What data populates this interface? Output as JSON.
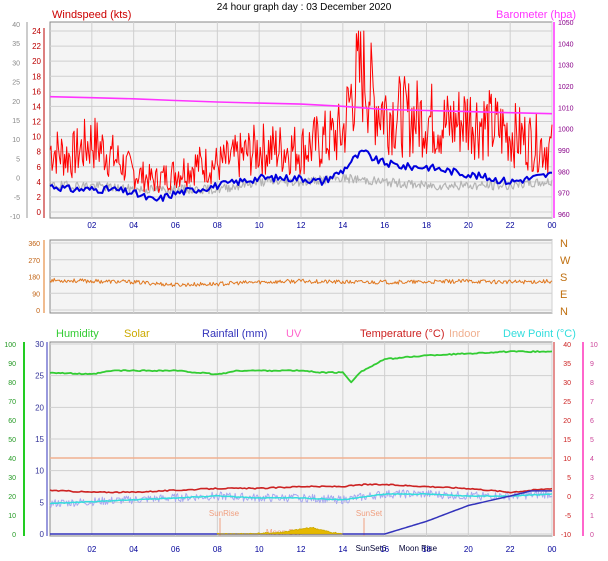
{
  "title": "24 hour graph day : 03 December 2020",
  "colors": {
    "wind": "#ff0000",
    "avgwind": "#0000dd",
    "gust_base": "#b4b4b4",
    "baro": "#ff33ff",
    "dir": "#e07820",
    "humidity": "#33cc33",
    "solar": "#ccaa00",
    "rain": "#3333bb",
    "uv": "#ff66cc",
    "temp": "#cc2222",
    "indoor": "#f0b090",
    "dew": "#33dddd",
    "sunmoon": "#f0a080",
    "grid": "#cfcfcf",
    "axis_blue": "#000099"
  },
  "time_ticks": [
    "02",
    "04",
    "06",
    "08",
    "10",
    "12",
    "14",
    "16",
    "18",
    "20",
    "22",
    "00"
  ],
  "chart_data": [
    {
      "type": "line",
      "panel": "wind-baro",
      "ylabel": "Windspeed (kts)",
      "ylabel_right": "Barometer (hpa)",
      "left_axis_kts": {
        "range": [
          0,
          24
        ],
        "ticks": [
          "24",
          "22",
          "20",
          "18",
          "16",
          "14",
          "12",
          "10",
          "8",
          "6",
          "4",
          "2",
          "0"
        ]
      },
      "left_axis_outer": {
        "range": [
          -10,
          40
        ],
        "ticks": [
          "40",
          "35",
          "30",
          "25",
          "20",
          "15",
          "10",
          "5",
          "0",
          "-5",
          "-10"
        ]
      },
      "right_axis_hpa": {
        "range": [
          960,
          1050
        ],
        "ticks": [
          "1050",
          "1040",
          "1030",
          "1020",
          "1010",
          "1000",
          "990",
          "980",
          "970",
          "960"
        ]
      },
      "series": [
        {
          "name": "Windspeed (kts)",
          "role": "gust",
          "x_hours": [
            0,
            1,
            2,
            3,
            4,
            5,
            6,
            7,
            8,
            9,
            10,
            11,
            12,
            13,
            14,
            14.5,
            15,
            15.5,
            16,
            17,
            18,
            19,
            20,
            21,
            22,
            23,
            24
          ],
          "values": [
            8,
            7,
            9,
            7,
            5,
            4,
            5,
            6,
            6,
            7,
            8,
            8,
            8,
            9,
            10,
            16,
            18,
            14,
            13,
            12,
            12,
            11,
            12,
            11,
            10,
            9,
            8
          ]
        },
        {
          "role": "avg",
          "x_hours": [
            0,
            1,
            2,
            3,
            4,
            5,
            6,
            7,
            8,
            9,
            10,
            11,
            12,
            13,
            14,
            14.5,
            15,
            15.5,
            16,
            17,
            18,
            19,
            20,
            21,
            22,
            23,
            24
          ],
          "values": [
            3.5,
            3,
            3,
            3,
            2.5,
            1.5,
            2.5,
            3,
            3.5,
            4,
            4.5,
            4.5,
            4.5,
            4,
            5.5,
            7,
            8,
            7,
            6.5,
            6,
            6,
            5.5,
            5,
            4.5,
            4,
            4.5,
            5
          ]
        },
        {
          "role": "base",
          "x_hours": [
            0,
            2,
            4,
            6,
            8,
            10,
            12,
            14,
            16,
            18,
            20,
            22,
            24
          ],
          "values": [
            3.5,
            3.5,
            3,
            3,
            3,
            4,
            4,
            4.5,
            4,
            3.5,
            3.5,
            3.5,
            4
          ]
        },
        {
          "name": "Barometer (hpa)",
          "axis": "right",
          "x_hours": [
            0,
            2,
            4,
            6,
            8,
            10,
            12,
            14,
            16,
            18,
            20,
            22,
            24
          ],
          "values": [
            1015,
            1014.5,
            1014,
            1013.2,
            1012.5,
            1012,
            1011.5,
            1010.5,
            1009,
            1008.5,
            1008,
            1007.5,
            1007
          ]
        }
      ]
    },
    {
      "type": "line",
      "panel": "wind-direction",
      "left_axis": {
        "range": [
          0,
          360
        ],
        "ticks": [
          "360",
          "270",
          "180",
          "90",
          "0"
        ]
      },
      "right_labels": [
        "N",
        "W",
        "S",
        "E",
        "N"
      ],
      "series": [
        {
          "role": "direction",
          "x_hours": [
            0,
            2,
            4,
            6,
            8,
            10,
            12,
            14,
            16,
            18,
            20,
            22,
            24
          ],
          "values": [
            160,
            155,
            150,
            135,
            140,
            150,
            155,
            150,
            150,
            150,
            155,
            150,
            155
          ]
        }
      ]
    },
    {
      "type": "line",
      "panel": "climate",
      "legend": [
        "Humidity",
        "Solar",
        "Rainfall (mm)",
        "UV",
        "Temperature (°C)",
        "Indoor",
        "Dew Point (°C)"
      ],
      "axes": {
        "humidity": {
          "range": [
            0,
            100
          ],
          "ticks": [
            "100",
            "90",
            "80",
            "70",
            "60",
            "50",
            "40",
            "30",
            "20",
            "10",
            "0"
          ]
        },
        "rain_mm": {
          "range": [
            0,
            30
          ],
          "ticks": [
            "30",
            "25",
            "20",
            "15",
            "10",
            "5",
            "0"
          ]
        },
        "temperature": {
          "range": [
            -10,
            40
          ],
          "ticks": [
            "40",
            "35",
            "30",
            "25",
            "20",
            "15",
            "10",
            "5",
            "0",
            "-5",
            "-10"
          ]
        },
        "uv": {
          "range": [
            0,
            10
          ],
          "ticks": [
            "10",
            "9",
            "8",
            "7",
            "6",
            "5",
            "4",
            "3",
            "2",
            "1",
            "0"
          ]
        }
      },
      "annotations": [
        "SunRise",
        "SunSet",
        "Moon Set",
        "SunSet6",
        "Moon Rise"
      ],
      "series": [
        {
          "name": "Humidity",
          "axis": "humidity",
          "x_hours": [
            0,
            2,
            3,
            4,
            6,
            8,
            9,
            10,
            12,
            13,
            14,
            14.4,
            14.8,
            15.5,
            16,
            18,
            20,
            22,
            24
          ],
          "values": [
            85,
            84,
            86,
            86,
            86,
            84,
            86,
            86,
            86,
            85,
            85,
            80,
            85,
            89,
            92,
            94,
            95,
            96,
            96
          ]
        },
        {
          "name": "Temperature (°C)",
          "axis": "temperature",
          "x_hours": [
            0,
            2,
            4,
            6,
            8,
            10,
            12,
            14,
            15,
            16,
            18,
            20,
            22,
            23,
            24
          ],
          "values": [
            1.5,
            1,
            1,
            1.5,
            2,
            2,
            2.5,
            2.5,
            3,
            3,
            2.5,
            2,
            1,
            1.5,
            2
          ]
        },
        {
          "name": "Indoor",
          "axis": "temperature",
          "x_hours": [
            0,
            24
          ],
          "values": [
            10,
            10
          ]
        },
        {
          "name": "Dew Point (°C)",
          "axis": "temperature",
          "x_hours": [
            0,
            2,
            4,
            6,
            8,
            10,
            12,
            14,
            16,
            18,
            20,
            22,
            24
          ],
          "values": [
            -2,
            -1.5,
            -1,
            -0.5,
            0,
            -0.5,
            -0.5,
            -1,
            0.5,
            0.5,
            0,
            0,
            0.5
          ]
        },
        {
          "name": "Rainfall (mm)",
          "axis": "rain_mm",
          "x_hours": [
            0,
            14.5,
            15,
            16,
            18,
            20,
            22,
            23,
            24
          ],
          "values": [
            0,
            0,
            0,
            0,
            2,
            4.5,
            6,
            6.8,
            6.8
          ]
        },
        {
          "name": "Solar",
          "axis": "humidity",
          "x_hours": [
            8,
            9,
            10,
            11,
            12,
            12.5,
            13,
            13.5,
            14
          ],
          "values": [
            0,
            0,
            0.3,
            0.8,
            2.5,
            3.5,
            2,
            0.8,
            0
          ]
        }
      ]
    }
  ]
}
